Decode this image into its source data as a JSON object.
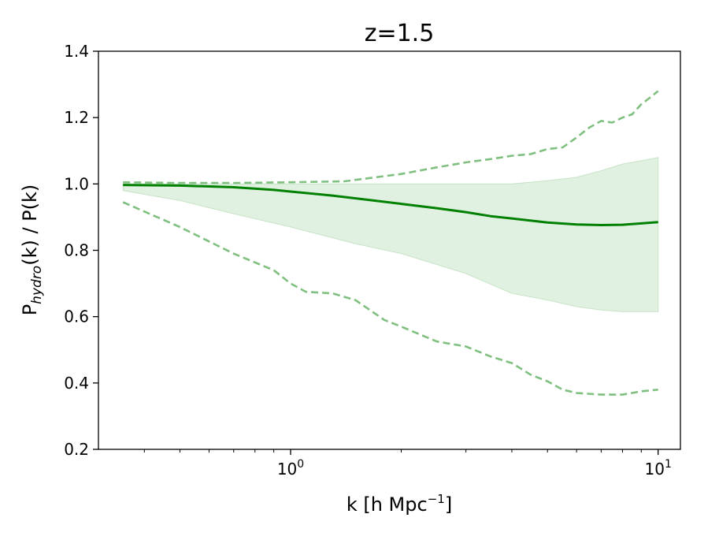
{
  "chart_data": {
    "type": "line",
    "title": "z=1.5",
    "xlabel": "k [h Mpc",
    "xlabel_sup": "−1",
    "xlabel_close": "]",
    "ylabel_p": "P",
    "ylabel_sub": "hydro",
    "ylabel_rest": "(k) / P(k)",
    "xscale": "log",
    "xlim": [
      0.3,
      11.5
    ],
    "ylim": [
      0.2,
      1.4
    ],
    "yticks": [
      "0.2",
      "0.4",
      "0.6",
      "0.8",
      "1.0",
      "1.2",
      "1.4"
    ],
    "xtick_major": [
      {
        "value": 1,
        "base": "10",
        "exp": "0"
      },
      {
        "value": 10,
        "base": "10",
        "exp": "1"
      }
    ],
    "grid": false,
    "colors": {
      "line": "#008000",
      "band": "#c8e6c8",
      "dashed": "#7fbf7f"
    },
    "series": [
      {
        "role": "mean",
        "style": "solid",
        "x": [
          0.35,
          0.5,
          0.7,
          0.9,
          1.0,
          1.3,
          1.6,
          2.0,
          2.5,
          3.0,
          3.5,
          4.0,
          5.0,
          6.0,
          7.0,
          8.0,
          9.0,
          10.0
        ],
        "y": [
          0.997,
          0.995,
          0.99,
          0.982,
          0.977,
          0.965,
          0.953,
          0.94,
          0.927,
          0.915,
          0.903,
          0.896,
          0.884,
          0.878,
          0.876,
          0.877,
          0.881,
          0.885
        ]
      },
      {
        "role": "band_upper",
        "x": [
          0.35,
          0.5,
          0.7,
          1.0,
          1.5,
          2.0,
          3.0,
          4.0,
          5.0,
          6.0,
          7.0,
          8.0,
          9.0,
          10.0
        ],
        "y": [
          1.0,
          1.0,
          1.0,
          1.0,
          1.0,
          1.0,
          1.0,
          1.0,
          1.01,
          1.02,
          1.04,
          1.06,
          1.07,
          1.08
        ]
      },
      {
        "role": "band_lower",
        "x": [
          0.35,
          0.5,
          0.7,
          1.0,
          1.5,
          2.0,
          3.0,
          4.0,
          5.0,
          6.0,
          7.0,
          8.0,
          9.0,
          10.0
        ],
        "y": [
          0.98,
          0.95,
          0.91,
          0.87,
          0.82,
          0.79,
          0.73,
          0.67,
          0.65,
          0.63,
          0.62,
          0.615,
          0.615,
          0.615
        ]
      },
      {
        "role": "upper_bound",
        "style": "dashed",
        "x": [
          0.35,
          0.5,
          0.7,
          1.0,
          1.4,
          2.0,
          2.5,
          3.0,
          3.5,
          4.0,
          4.5,
          5.0,
          5.5,
          6.0,
          6.5,
          7.0,
          7.5,
          8.0,
          8.5,
          9.0,
          9.5,
          10.0
        ],
        "y": [
          1.005,
          1.003,
          1.003,
          1.005,
          1.008,
          1.03,
          1.05,
          1.065,
          1.075,
          1.085,
          1.09,
          1.105,
          1.11,
          1.14,
          1.17,
          1.19,
          1.185,
          1.2,
          1.21,
          1.24,
          1.26,
          1.28
        ]
      },
      {
        "role": "lower_bound",
        "style": "dashed",
        "x": [
          0.35,
          0.5,
          0.7,
          0.9,
          1.0,
          1.1,
          1.3,
          1.5,
          1.8,
          2.0,
          2.5,
          3.0,
          3.5,
          4.0,
          4.5,
          5.0,
          5.5,
          6.0,
          7.0,
          8.0,
          9.0,
          10.0
        ],
        "y": [
          0.945,
          0.87,
          0.79,
          0.74,
          0.7,
          0.675,
          0.67,
          0.65,
          0.59,
          0.57,
          0.525,
          0.51,
          0.48,
          0.46,
          0.425,
          0.405,
          0.38,
          0.37,
          0.365,
          0.365,
          0.375,
          0.38
        ]
      }
    ]
  }
}
